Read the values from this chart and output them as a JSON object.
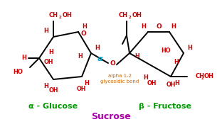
{
  "bg_color": "#ffffff",
  "red": "#cc0000",
  "black": "#000000",
  "green": "#009900",
  "cyan": "#00aacc",
  "orange": "#cc6600",
  "purple": "#aa00aa",
  "fig_w": 3.12,
  "fig_h": 1.89,
  "dpi": 100,
  "title": "Sucrose",
  "glucose_label": "α - Glucose",
  "fructose_label": "β - Fructose",
  "bond_label1": "alpha 1-2",
  "bond_label2": "glycosidic bond",
  "alpha_label": "α",
  "glu_ring_x": [
    75,
    110,
    128,
    115,
    75,
    55
  ],
  "glu_ring_y": [
    52,
    45,
    75,
    108,
    112,
    82
  ],
  "fru_ring_x": [
    182,
    208,
    238,
    258,
    240
  ],
  "fru_ring_y": [
    75,
    45,
    45,
    75,
    108
  ]
}
